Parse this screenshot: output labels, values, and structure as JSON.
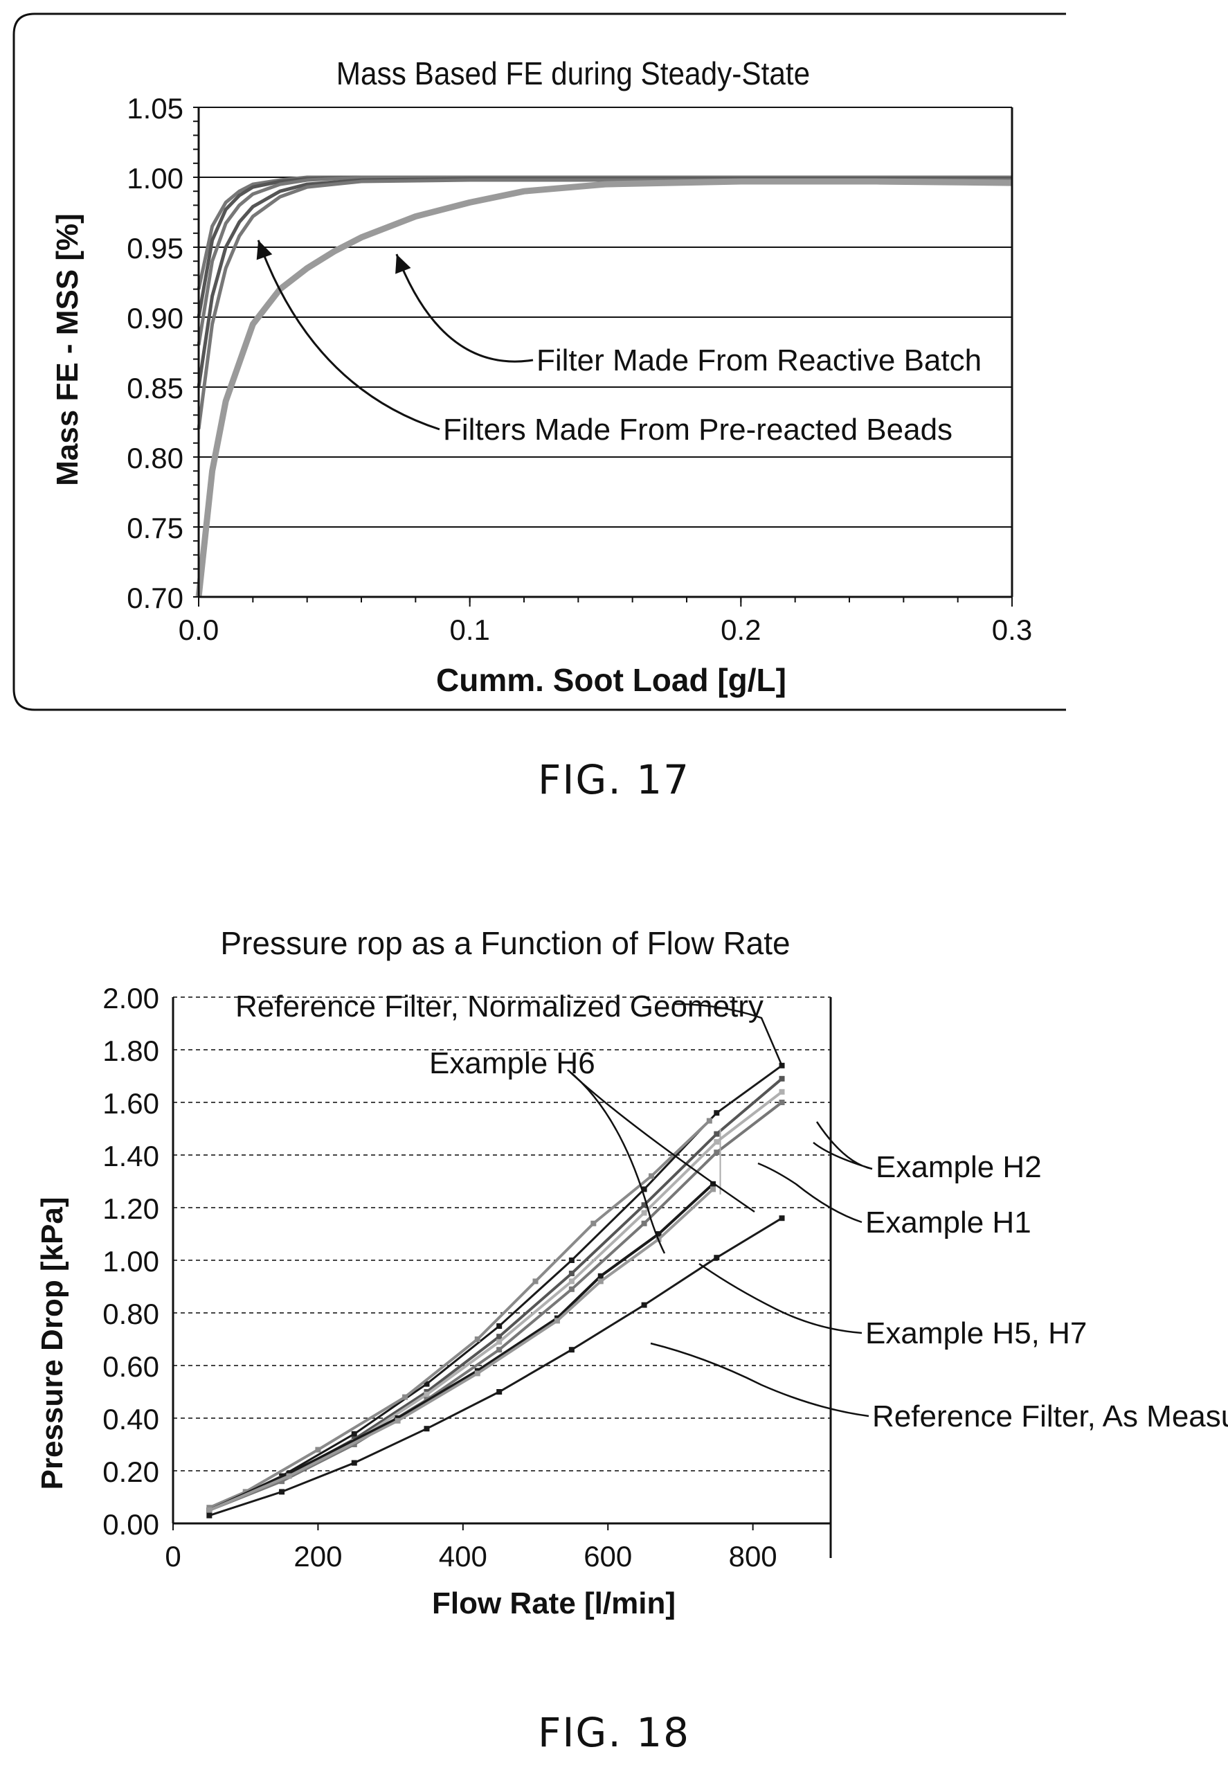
{
  "figures": [
    {
      "caption": "FIG. 17"
    },
    {
      "caption": "FIG. 18"
    }
  ],
  "chart_data": [
    {
      "type": "line",
      "title": "Mass Based FE during Steady-State",
      "xlabel": "Cumm. Soot Load [g/L]",
      "ylabel": "Mass FE - MSS [%]",
      "xlim": [
        0,
        0.3
      ],
      "ylim": [
        0.7,
        1.05
      ],
      "xticks": [
        "0.0",
        "0.1",
        "0.2",
        "0.3"
      ],
      "yticks": [
        "0.70",
        "0.75",
        "0.80",
        "0.85",
        "0.90",
        "0.95",
        "1.00",
        "1.05"
      ],
      "grid": "horizontal",
      "colors": {
        "series_dark": "#555555",
        "series_light": "#9a9a9a",
        "grid": "#000000"
      },
      "series": [
        {
          "group": "pre-reacted",
          "x": [
            0.0,
            0.005,
            0.01,
            0.015,
            0.02,
            0.03,
            0.04,
            0.06,
            0.1,
            0.3
          ],
          "y": [
            0.92,
            0.965,
            0.982,
            0.99,
            0.995,
            0.998,
            1.0,
            1.0,
            1.0,
            1.0
          ]
        },
        {
          "group": "pre-reacted",
          "x": [
            0.0,
            0.005,
            0.01,
            0.015,
            0.02,
            0.03,
            0.04,
            0.06,
            0.1,
            0.3
          ],
          "y": [
            0.9,
            0.955,
            0.977,
            0.987,
            0.993,
            0.997,
            0.999,
            1.0,
            1.0,
            1.0
          ]
        },
        {
          "group": "pre-reacted",
          "x": [
            0.0,
            0.005,
            0.01,
            0.015,
            0.02,
            0.03,
            0.04,
            0.06,
            0.1,
            0.3
          ],
          "y": [
            0.88,
            0.94,
            0.967,
            0.98,
            0.988,
            0.995,
            0.998,
            1.0,
            1.0,
            1.0
          ]
        },
        {
          "group": "pre-reacted",
          "x": [
            0.0,
            0.005,
            0.01,
            0.015,
            0.02,
            0.03,
            0.04,
            0.06,
            0.1,
            0.3
          ],
          "y": [
            0.85,
            0.915,
            0.95,
            0.968,
            0.979,
            0.99,
            0.995,
            0.998,
            0.999,
            0.999
          ]
        },
        {
          "group": "pre-reacted",
          "x": [
            0.0,
            0.005,
            0.01,
            0.015,
            0.02,
            0.03,
            0.04,
            0.06,
            0.1,
            0.3
          ],
          "y": [
            0.82,
            0.895,
            0.935,
            0.958,
            0.972,
            0.986,
            0.993,
            0.997,
            0.998,
            0.998
          ]
        },
        {
          "group": "reactive",
          "x": [
            0.0,
            0.005,
            0.01,
            0.02,
            0.03,
            0.04,
            0.05,
            0.06,
            0.08,
            0.1,
            0.12,
            0.15,
            0.2,
            0.25,
            0.3
          ],
          "y": [
            0.7,
            0.79,
            0.84,
            0.895,
            0.92,
            0.935,
            0.947,
            0.957,
            0.972,
            0.982,
            0.99,
            0.995,
            0.997,
            0.997,
            0.996
          ]
        }
      ],
      "annotations": [
        {
          "text": "Filter Made From Reactive Batch",
          "points_to": [
            0.073,
            0.945
          ]
        },
        {
          "text": "Filters Made From Pre-reacted Beads",
          "points_to": [
            0.022,
            0.955
          ]
        }
      ]
    },
    {
      "type": "line",
      "title": "Pressure rop as a Function of Flow Rate",
      "xlabel": "Flow Rate [l/min]",
      "ylabel": "Pressure Drop [kPa]",
      "xlim": [
        0,
        850
      ],
      "ylim": [
        0,
        2.0
      ],
      "xticks": [
        "0",
        "200",
        "400",
        "600",
        "800"
      ],
      "yticks": [
        "0.00",
        "0.20",
        "0.40",
        "0.60",
        "0.80",
        "1.00",
        "1.20",
        "1.40",
        "1.60",
        "1.80",
        "2.00"
      ],
      "grid": "horizontal-dashed",
      "colors": {
        "dark": "#1a1a1a",
        "mid": "#777777",
        "light": "#b0b0b0"
      },
      "series": [
        {
          "name": "Reference Filter, Normalized Geometry",
          "x": [
            50,
            150,
            250,
            350,
            450,
            550,
            650,
            750,
            840
          ],
          "y": [
            0.05,
            0.18,
            0.34,
            0.53,
            0.75,
            1.0,
            1.27,
            1.56,
            1.74
          ]
        },
        {
          "name": "Example H6",
          "x": [
            50,
            100,
            200,
            320,
            420,
            500,
            580,
            660,
            740
          ],
          "y": [
            0.06,
            0.12,
            0.28,
            0.48,
            0.7,
            0.92,
            1.14,
            1.32,
            1.53
          ]
        },
        {
          "name": "Example H2",
          "x": [
            50,
            150,
            250,
            350,
            450,
            550,
            650,
            750,
            840
          ],
          "y": [
            0.05,
            0.17,
            0.32,
            0.5,
            0.71,
            0.95,
            1.21,
            1.48,
            1.69
          ]
        },
        {
          "name": "Example H2",
          "x": [
            50,
            150,
            250,
            350,
            450,
            550,
            650,
            750,
            840
          ],
          "y": [
            0.05,
            0.17,
            0.31,
            0.49,
            0.69,
            0.92,
            1.18,
            1.45,
            1.64
          ]
        },
        {
          "name": "Example H1",
          "x": [
            50,
            150,
            250,
            350,
            450,
            550,
            650,
            750,
            840
          ],
          "y": [
            0.05,
            0.16,
            0.3,
            0.47,
            0.66,
            0.89,
            1.14,
            1.41,
            1.6
          ]
        },
        {
          "name": "Example H5, H7",
          "x": [
            50,
            160,
            310,
            420,
            530,
            590,
            670,
            745
          ],
          "y": [
            0.05,
            0.19,
            0.4,
            0.58,
            0.78,
            0.94,
            1.1,
            1.29
          ]
        },
        {
          "name": "Example H5, H7",
          "x": [
            50,
            160,
            310,
            420,
            530,
            590,
            670,
            745
          ],
          "y": [
            0.05,
            0.18,
            0.39,
            0.57,
            0.77,
            0.92,
            1.08,
            1.27
          ]
        },
        {
          "name": "Reference Filter, As Measured",
          "x": [
            50,
            150,
            250,
            350,
            450,
            550,
            650,
            750,
            840
          ],
          "y": [
            0.03,
            0.12,
            0.23,
            0.36,
            0.5,
            0.66,
            0.83,
            1.01,
            1.16
          ]
        }
      ],
      "annotations": [
        {
          "text": "Reference Filter, Normalized Geometry",
          "points_to": [
            840,
            1.74
          ]
        },
        {
          "text": "Example H6",
          "points_to": [
            700,
            1.44
          ]
        },
        {
          "text": "Example H2",
          "points_to": [
            840,
            1.66
          ]
        },
        {
          "text": "Example H1",
          "points_to": [
            760,
            1.4
          ]
        },
        {
          "text": "Example H5, H7",
          "points_to": [
            630,
            1.06
          ]
        },
        {
          "text": "Reference Filter, As Measured",
          "points_to": [
            610,
            0.78
          ]
        }
      ]
    }
  ]
}
